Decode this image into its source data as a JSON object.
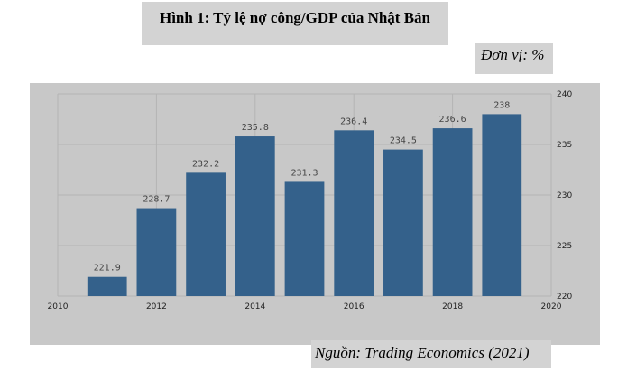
{
  "figure_title": "Hình 1: Tỷ lệ nợ công/GDP của Nhật Bản",
  "unit_label": "Đơn vị: %",
  "source_label": "Nguồn: Trading Economics (2021)",
  "colors": {
    "bar": "#34618b",
    "panel": "#c8c8c8",
    "grid": "#b4b4b4"
  },
  "chart_data": {
    "type": "bar",
    "title": "Hình 1: Tỷ lệ nợ công/GDP của Nhật Bản",
    "x": [
      2011,
      2012,
      2013,
      2014,
      2015,
      2016,
      2017,
      2018,
      2019
    ],
    "values": [
      221.9,
      228.7,
      232.2,
      235.8,
      231.3,
      236.4,
      234.5,
      236.6,
      238
    ],
    "data_labels": [
      "221.9",
      "228.7",
      "232.2",
      "235.8",
      "231.3",
      "236.4",
      "234.5",
      "236.6",
      "238"
    ],
    "xlim": [
      2010,
      2020
    ],
    "x_ticks": [
      2010,
      2012,
      2014,
      2016,
      2018,
      2020
    ],
    "ylim": [
      220,
      240
    ],
    "y_ticks": [
      220,
      225,
      230,
      235,
      240
    ],
    "y_axis_side": "right",
    "grid": true,
    "legend": "none"
  }
}
